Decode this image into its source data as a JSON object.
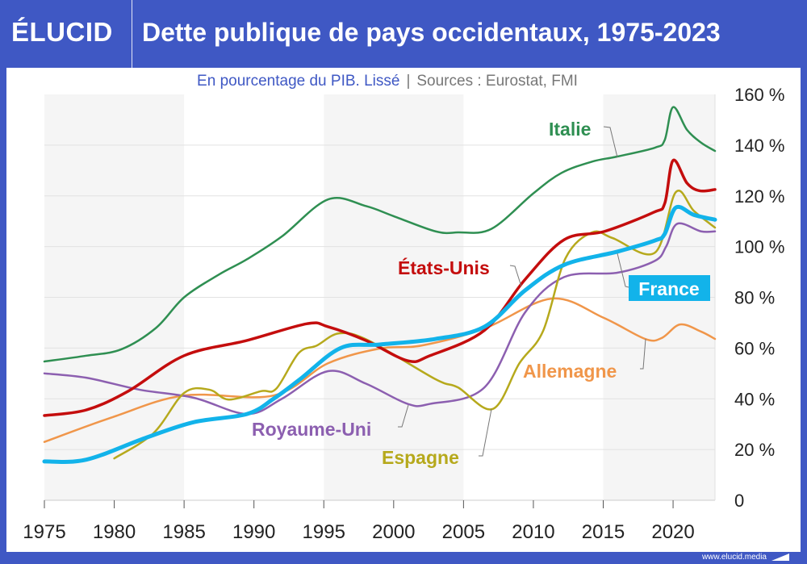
{
  "header": {
    "logo": "ÉLUCID",
    "title": "Dette publique de pays occidentaux, 1975-2023"
  },
  "subtitle": {
    "description": "En pourcentage du PIB. Lissé",
    "separator": "|",
    "sources": "Sources : Eurostat, FMI"
  },
  "footer": {
    "url": "www.elucid.media"
  },
  "colors": {
    "frame": "#3f58c4",
    "band": "#f5f5f5",
    "grid": "#e2e2e2"
  },
  "chart_data": {
    "type": "line",
    "title": "Dette publique de pays occidentaux, 1975-2023",
    "subtitle": "En pourcentage du PIB. Lissé",
    "xlim": [
      1975,
      2023
    ],
    "ylim": [
      0,
      160
    ],
    "x_ticks": [
      "1975",
      "1980",
      "1985",
      "1990",
      "1995",
      "2000",
      "2005",
      "2010",
      "2015",
      "2020"
    ],
    "y_ticks": [
      "0",
      "20 %",
      "40 %",
      "60 %",
      "80 %",
      "100 %",
      "120 %",
      "140 %",
      "160 %"
    ],
    "grid": true,
    "y_axis_position": "right",
    "series": [
      {
        "name": "Italie",
        "color": "#2f8f52",
        "width": 2.5,
        "x": [
          1975,
          1978,
          1980.5,
          1983,
          1985,
          1987.5,
          1989.5,
          1992,
          1995.3,
          1998,
          2000,
          2003,
          2004.6,
          2007,
          2010,
          2012,
          2014.2,
          2016,
          2018.7,
          2019.4,
          2020,
          2021,
          2022,
          2023
        ],
        "y": [
          54.7,
          57,
          59.5,
          68,
          80,
          89,
          95,
          104,
          118.6,
          116,
          112,
          106,
          105.6,
          107,
          121,
          129,
          133.5,
          135.5,
          139,
          142,
          155,
          146,
          141,
          137.7
        ]
      },
      {
        "name": "États-Unis",
        "color": "#c40d0d",
        "width": 3.5,
        "x": [
          1975,
          1978,
          1981,
          1985,
          1989.5,
          1993.8,
          1995.3,
          1998,
          2001,
          2002.6,
          2006.5,
          2009.4,
          2012.2,
          2015.1,
          2018.6,
          2019.4,
          2020,
          2021,
          2021.9,
          2023
        ],
        "y": [
          33.4,
          35.6,
          43,
          57,
          63,
          69.6,
          68.4,
          63,
          55,
          57,
          67,
          87,
          102.7,
          106,
          113.5,
          117,
          134,
          125,
          122,
          122.5
        ]
      },
      {
        "name": "France",
        "color": "#12b3ea",
        "width": 5,
        "x": [
          1975,
          1978,
          1982.2,
          1985.7,
          1989.5,
          1991.4,
          1993.3,
          1996.2,
          1999,
          2003,
          2006.5,
          2009.4,
          2012.2,
          2016,
          2018.7,
          2019.4,
          2020.2,
          2021.5,
          2023
        ],
        "y": [
          15.3,
          16,
          24.5,
          30.8,
          34,
          40,
          47.7,
          60,
          61.4,
          63.6,
          68.4,
          82.7,
          92.8,
          98,
          102.4,
          105,
          115.4,
          112.5,
          110.6
        ]
      },
      {
        "name": "Allemagne",
        "color": "#f0964a",
        "width": 2.5,
        "x": [
          1975,
          1979.9,
          1985,
          1991.4,
          1995.3,
          1999,
          2002,
          2006.5,
          2011.3,
          2015,
          2018,
          2019.2,
          2020.5,
          2022,
          2023
        ],
        "y": [
          23,
          32.8,
          41.3,
          41.3,
          54,
          59.8,
          61,
          67.7,
          79.5,
          72,
          63.6,
          64,
          69.3,
          66.5,
          63.6
        ]
      },
      {
        "name": "Royaume-Uni",
        "color": "#8c5fb0",
        "width": 2.5,
        "x": [
          1975,
          1978,
          1981.8,
          1985.7,
          1989.5,
          1992,
          1995.3,
          1998,
          2001,
          2002.6,
          2006.5,
          2009.4,
          2012.2,
          2016,
          2018.7,
          2019.5,
          2020.3,
          2022,
          2023
        ],
        "y": [
          50,
          48.3,
          43.6,
          40.4,
          34,
          40,
          50.9,
          46,
          38,
          38,
          44.5,
          74,
          88,
          89.7,
          94.4,
          100,
          109,
          106,
          106
        ]
      },
      {
        "name": "Espagne",
        "color": "#b6a91c",
        "width": 2.5,
        "x": [
          1980,
          1982.8,
          1985,
          1986.8,
          1988.2,
          1990.5,
          1991.6,
          1993.2,
          1994.5,
          1996.1,
          1998.2,
          2003,
          2004.6,
          2007.1,
          2009,
          2010.7,
          2012.3,
          2014.2,
          2015.7,
          2018.7,
          2020.2,
          2021.5,
          2023
        ],
        "y": [
          16.5,
          26.4,
          42.3,
          43.6,
          39.7,
          43,
          44,
          58,
          61,
          65.8,
          63,
          47.7,
          44.5,
          36,
          54,
          66.8,
          95.4,
          105.6,
          103.3,
          97.6,
          121.5,
          114,
          107.5
        ]
      }
    ]
  }
}
